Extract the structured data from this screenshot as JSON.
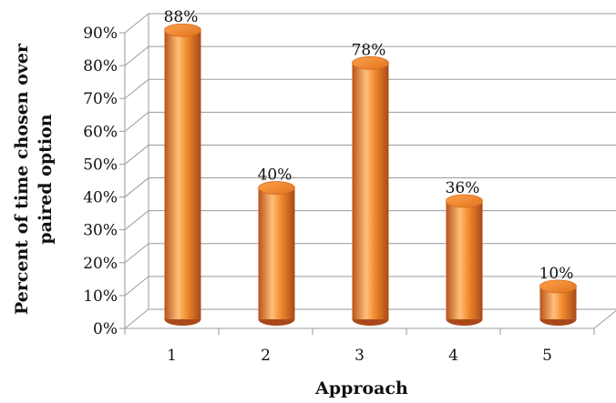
{
  "chart_data": {
    "type": "bar",
    "style": "3d-cylinder",
    "categories": [
      "1",
      "2",
      "3",
      "4",
      "5"
    ],
    "values": [
      88,
      40,
      78,
      36,
      10
    ],
    "data_labels": [
      "88%",
      "40%",
      "78%",
      "36%",
      "10%"
    ],
    "yticks": [
      "0%",
      "10%",
      "20%",
      "30%",
      "40%",
      "50%",
      "60%",
      "70%",
      "80%",
      "90%"
    ],
    "ylim": [
      0,
      90
    ],
    "xlabel": "Approach",
    "ylabel_lines": [
      "Percent of time chosen over",
      "paired option"
    ],
    "grid": true,
    "legend": "none",
    "colors": {
      "bar": "#f08a2c",
      "bar_dark": "#b8541a",
      "bar_light": "#ffbf7a",
      "grid": "#9a9a9a"
    }
  }
}
